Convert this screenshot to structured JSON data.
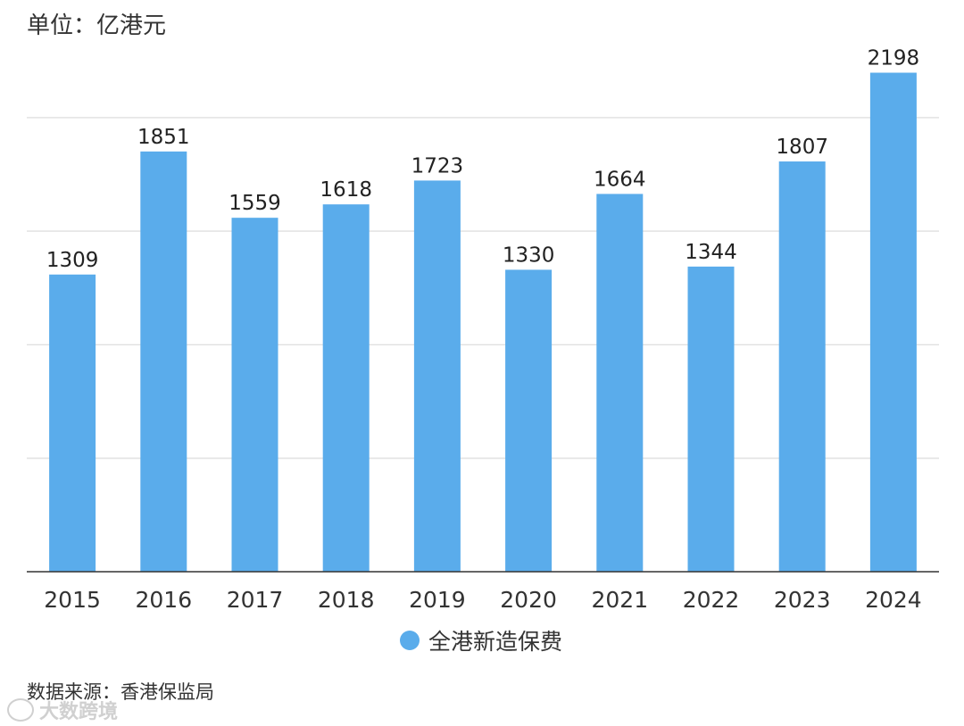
{
  "unit_label": "单位：亿港元",
  "source": "数据来源：香港保监局",
  "watermark": "大数跨境",
  "colors": {
    "bar": "#5aaceb",
    "grid": "#e2e2e2",
    "axis": "#333333"
  },
  "chart_data": {
    "type": "bar",
    "categories": [
      "2015",
      "2016",
      "2017",
      "2018",
      "2019",
      "2020",
      "2021",
      "2022",
      "2023",
      "2024"
    ],
    "series": [
      {
        "name": "全港新造保费",
        "values": [
          1309,
          1851,
          1559,
          1618,
          1723,
          1330,
          1664,
          1344,
          1807,
          2198
        ]
      }
    ],
    "ylim": [
      0,
      2200
    ],
    "grid": true,
    "legend": "bottom-center",
    "data_labels": true
  }
}
